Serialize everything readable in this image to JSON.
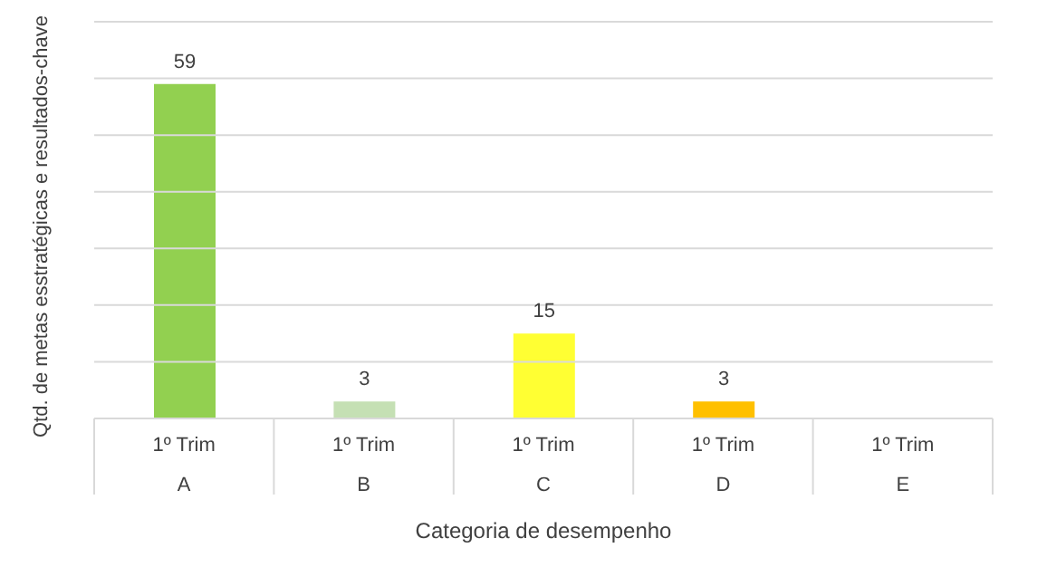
{
  "chart_data": {
    "type": "bar",
    "xlabel": "Categoria de desempenho",
    "ylabel": "Qtd. de metas esstratégicas  e resultados-chave",
    "categories": [
      "1º Trim\nA",
      "1º Trim\nB",
      "1º Trim\nC",
      "1º Trim\nD",
      "1º Trim\nE"
    ],
    "values": [
      59,
      3,
      15,
      3,
      null
    ],
    "colors": [
      "#92d050",
      "#c5e0b4",
      "#ffff33",
      "#ffc000",
      "#ffc000"
    ],
    "data_labels": true,
    "grid": "y",
    "tick_labels": "x",
    "legend": false,
    "ylim": [
      0,
      70
    ],
    "yticks": [
      {
        "value": 0,
        "label": null
      },
      {
        "value": 10,
        "label": null
      },
      {
        "value": 20,
        "label": null
      },
      {
        "value": 30,
        "label": null
      },
      {
        "value": 40,
        "label": null
      },
      {
        "value": 50,
        "label": null
      },
      {
        "value": 60,
        "label": null
      },
      {
        "value": 70,
        "label": null
      }
    ]
  }
}
